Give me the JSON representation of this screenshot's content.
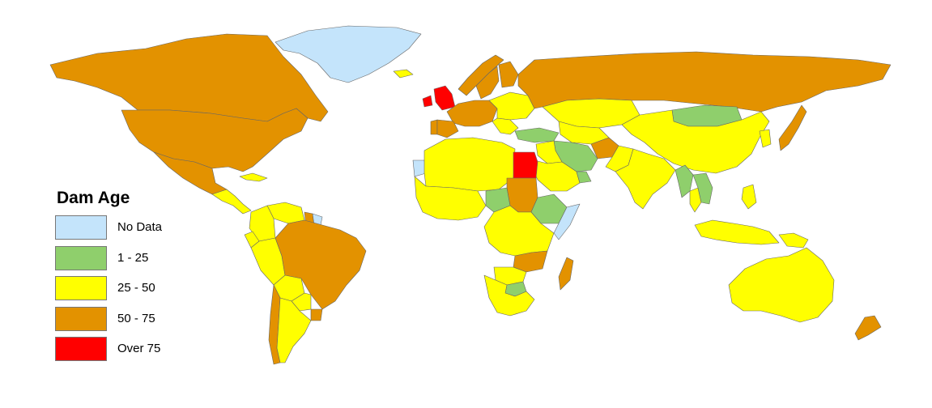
{
  "map": {
    "legend": {
      "title": "Dam Age",
      "items": [
        {
          "label": "No Data",
          "color": "#c4e4fb"
        },
        {
          "label": "1 - 25",
          "color": "#8fcf6c"
        },
        {
          "label": "25 - 50",
          "color": "#ffff00"
        },
        {
          "label": "50 - 75",
          "color": "#e39200"
        },
        {
          "label": "Over 75",
          "color": "#ff0000"
        }
      ]
    },
    "regions": [
      {
        "name": "Greenland",
        "category": "No Data"
      },
      {
        "name": "Canada",
        "category": "50 - 75"
      },
      {
        "name": "United States",
        "category": "50 - 75"
      },
      {
        "name": "Mexico",
        "category": "50 - 75"
      },
      {
        "name": "Central America",
        "category": "25 - 50"
      },
      {
        "name": "Cuba",
        "category": "25 - 50"
      },
      {
        "name": "Venezuela",
        "category": "25 - 50"
      },
      {
        "name": "Guyana",
        "category": "50 - 75"
      },
      {
        "name": "Suriname",
        "category": "No Data"
      },
      {
        "name": "Colombia",
        "category": "25 - 50"
      },
      {
        "name": "Ecuador",
        "category": "25 - 50"
      },
      {
        "name": "Peru",
        "category": "25 - 50"
      },
      {
        "name": "Brazil",
        "category": "50 - 75"
      },
      {
        "name": "Bolivia",
        "category": "25 - 50"
      },
      {
        "name": "Paraguay",
        "category": "25 - 50"
      },
      {
        "name": "Uruguay",
        "category": "50 - 75"
      },
      {
        "name": "Chile",
        "category": "50 - 75"
      },
      {
        "name": "Argentina",
        "category": "25 - 50"
      },
      {
        "name": "Iceland",
        "category": "25 - 50"
      },
      {
        "name": "Ireland",
        "category": "Over 75"
      },
      {
        "name": "United Kingdom",
        "category": "Over 75"
      },
      {
        "name": "Norway",
        "category": "50 - 75"
      },
      {
        "name": "Sweden",
        "category": "50 - 75"
      },
      {
        "name": "Finland",
        "category": "50 - 75"
      },
      {
        "name": "Western Europe",
        "category": "50 - 75"
      },
      {
        "name": "Portugal",
        "category": "50 - 75"
      },
      {
        "name": "Spain",
        "category": "50 - 75"
      },
      {
        "name": "Eastern Europe",
        "category": "25 - 50"
      },
      {
        "name": "Balkans",
        "category": "25 - 50"
      },
      {
        "name": "Russia",
        "category": "50 - 75"
      },
      {
        "name": "Kazakhstan",
        "category": "25 - 50"
      },
      {
        "name": "Central Asia",
        "category": "25 - 50"
      },
      {
        "name": "Mongolia",
        "category": "1 - 25"
      },
      {
        "name": "China",
        "category": "25 - 50"
      },
      {
        "name": "Korea",
        "category": "25 - 50"
      },
      {
        "name": "Japan",
        "category": "50 - 75"
      },
      {
        "name": "Turkey",
        "category": "1 - 25"
      },
      {
        "name": "Iran",
        "category": "1 - 25"
      },
      {
        "name": "Afghanistan",
        "category": "50 - 75"
      },
      {
        "name": "Iraq",
        "category": "25 - 50"
      },
      {
        "name": "Saudi Arabia",
        "category": "25 - 50"
      },
      {
        "name": "Oman",
        "category": "1 - 25"
      },
      {
        "name": "Pakistan",
        "category": "25 - 50"
      },
      {
        "name": "India",
        "category": "25 - 50"
      },
      {
        "name": "Myanmar",
        "category": "1 - 25"
      },
      {
        "name": "Thailand",
        "category": "25 - 50"
      },
      {
        "name": "Vietnam",
        "category": "1 - 25"
      },
      {
        "name": "Philippines",
        "category": "25 - 50"
      },
      {
        "name": "Indonesia",
        "category": "25 - 50"
      },
      {
        "name": "Papua New Guinea",
        "category": "25 - 50"
      },
      {
        "name": "Australia",
        "category": "25 - 50"
      },
      {
        "name": "New Zealand",
        "category": "50 - 75"
      },
      {
        "name": "Western Sahara",
        "category": "No Data"
      },
      {
        "name": "North Africa",
        "category": "25 - 50"
      },
      {
        "name": "Egypt",
        "category": "Over 75"
      },
      {
        "name": "West Africa",
        "category": "25 - 50"
      },
      {
        "name": "Central African Republic",
        "category": "1 - 25"
      },
      {
        "name": "Sudan",
        "category": "50 - 75"
      },
      {
        "name": "Ethiopia",
        "category": "1 - 25"
      },
      {
        "name": "Somalia",
        "category": "No Data"
      },
      {
        "name": "East Africa",
        "category": "25 - 50"
      },
      {
        "name": "Tanzania",
        "category": "50 - 75"
      },
      {
        "name": "Zambia",
        "category": "25 - 50"
      },
      {
        "name": "Zimbabwe",
        "category": "1 - 25"
      },
      {
        "name": "Southern Africa",
        "category": "25 - 50"
      },
      {
        "name": "Madagascar",
        "category": "50 - 75"
      }
    ]
  }
}
